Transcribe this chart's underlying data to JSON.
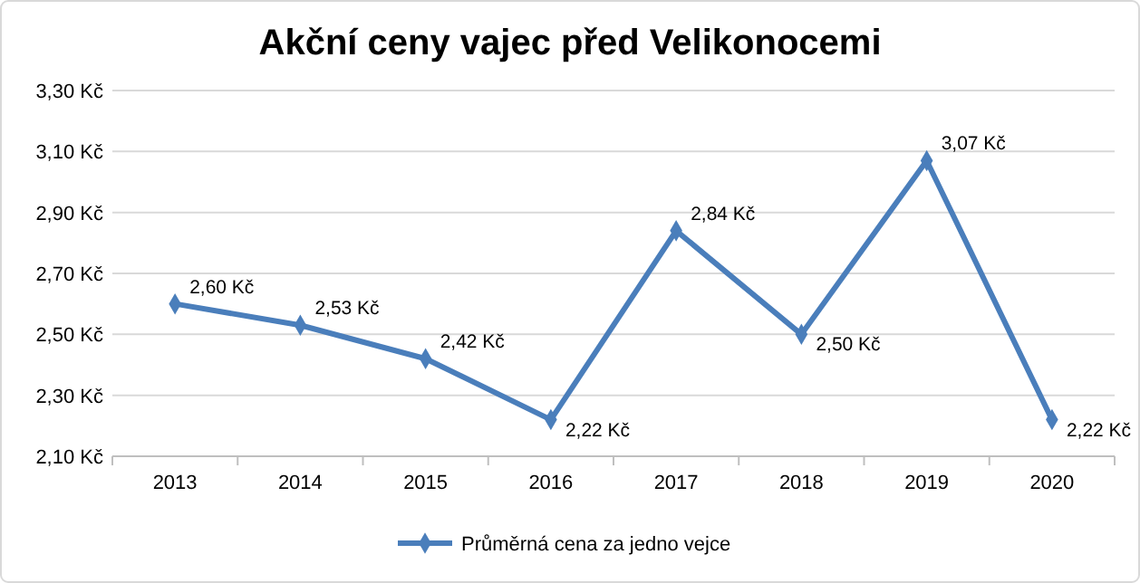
{
  "chart_data": {
    "type": "line",
    "title": "Akční ceny vajec před Velikonocemi",
    "categories": [
      "2013",
      "2014",
      "2015",
      "2016",
      "2017",
      "2018",
      "2019",
      "2020"
    ],
    "series": [
      {
        "name": "Průměrná cena za jedno vejce",
        "color": "#4a7ebb",
        "values": [
          2.6,
          2.53,
          2.42,
          2.22,
          2.84,
          2.5,
          3.07,
          2.22
        ],
        "value_labels": [
          "2,60 Kč",
          "2,53 Kč",
          "2,42 Kč",
          "2,22 Kč",
          "2,84 Kč",
          "2,50 Kč",
          "3,07 Kč",
          "2,22 Kč"
        ]
      }
    ],
    "ylim": [
      2.1,
      3.3
    ],
    "yticks": [
      {
        "value": 2.1,
        "label": "2,10 Kč"
      },
      {
        "value": 2.3,
        "label": "2,30 Kč"
      },
      {
        "value": 2.5,
        "label": "2,50 Kč"
      },
      {
        "value": 2.7,
        "label": "2,70 Kč"
      },
      {
        "value": 2.9,
        "label": "2,90 Kč"
      },
      {
        "value": 3.1,
        "label": "3,10 Kč"
      },
      {
        "value": 3.3,
        "label": "3,30 Kč"
      }
    ],
    "grid": "y",
    "legend": "bottom",
    "marker": "diamond",
    "line_style": "solid"
  }
}
